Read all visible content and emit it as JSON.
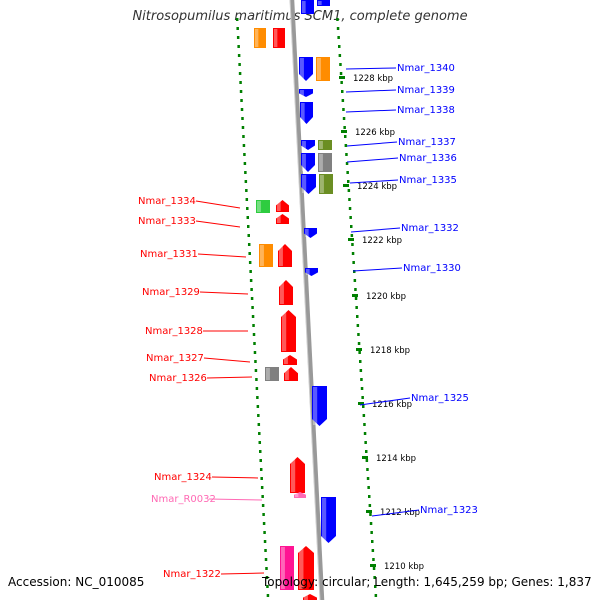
{
  "title": "Nitrosopumilus maritimus SCM1, complete genome",
  "accession": "Accession: NC_010085",
  "summary": "Topology: circular; Length: 1,645,259 bp; Genes: 1,837",
  "colors": {
    "minus_gene": "#ff0000",
    "plus_gene": "#0000ff",
    "rna_gene": "#ff69b4",
    "backbone": "#999999",
    "tick": "#008000",
    "orange_cog": "#ff8c00",
    "green_cog": "#2ecc40",
    "olive_cog": "#6b8e23",
    "gray_cog": "#808080",
    "pink_cog": "#ff1493"
  },
  "scale_labels": [
    "1228 kbp",
    "1226 kbp",
    "1224 kbp",
    "1222 kbp",
    "1220 kbp",
    "1218 kbp",
    "1216 kbp",
    "1214 kbp",
    "1212 kbp",
    "1210 kbp"
  ],
  "genes_left": [
    "Nmar_1334",
    "Nmar_1333",
    "Nmar_1331",
    "Nmar_1329",
    "Nmar_1328",
    "Nmar_1327",
    "Nmar_1326",
    "Nmar_1324",
    "Nmar_R0032",
    "Nmar_1322"
  ],
  "genes_right": [
    "Nmar_1340",
    "Nmar_1339",
    "Nmar_1338",
    "Nmar_1337",
    "Nmar_1336",
    "Nmar_1335",
    "Nmar_1332",
    "Nmar_1330",
    "Nmar_1325",
    "Nmar_1323"
  ]
}
